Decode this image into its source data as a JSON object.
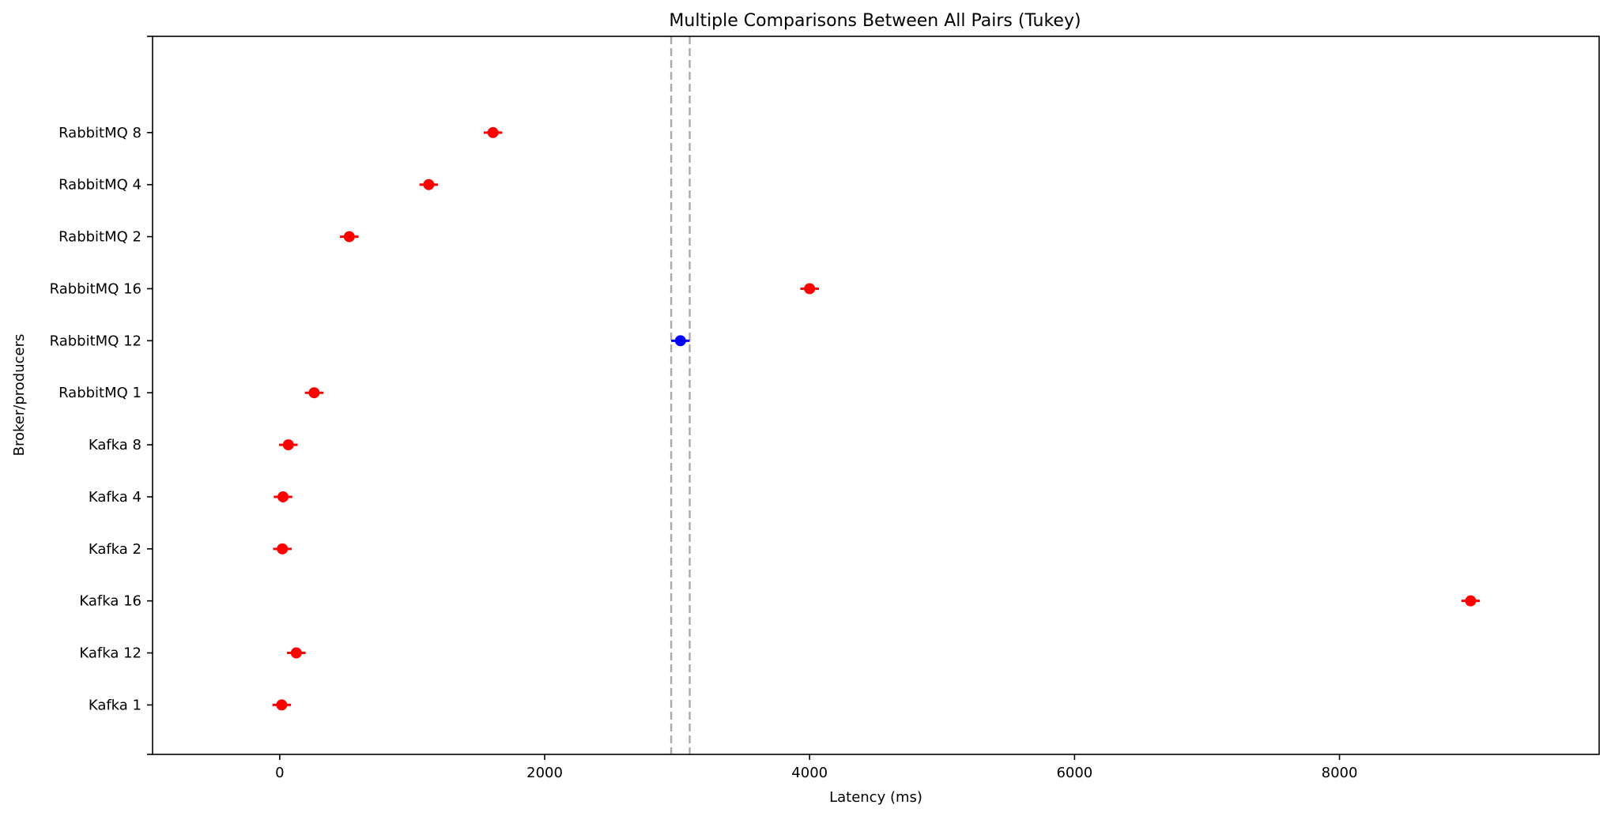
{
  "chart_data": {
    "type": "scatter",
    "title": "Multiple Comparisons Between All Pairs (Tukey)",
    "xlabel": "Latency (ms)",
    "ylabel": "Broker/producers",
    "xlim": [
      -960,
      9960
    ],
    "xticks": [
      0,
      2000,
      4000,
      6000,
      8000
    ],
    "xtick_labels": [
      "0",
      "2000",
      "4000",
      "6000",
      "8000"
    ],
    "categories": [
      "Kafka 1",
      "Kafka 12",
      "Kafka 16",
      "Kafka 2",
      "Kafka 4",
      "Kafka 8",
      "RabbitMQ 1",
      "RabbitMQ 12",
      "RabbitMQ 16",
      "RabbitMQ 2",
      "RabbitMQ 4",
      "RabbitMQ 8"
    ],
    "points": [
      {
        "label": "Kafka 1",
        "mean": 15,
        "half_width": 70,
        "color": "#ff0000"
      },
      {
        "label": "Kafka 12",
        "mean": 125,
        "half_width": 70,
        "color": "#ff0000"
      },
      {
        "label": "Kafka 16",
        "mean": 8990,
        "half_width": 70,
        "color": "#ff0000"
      },
      {
        "label": "Kafka 2",
        "mean": 20,
        "half_width": 70,
        "color": "#ff0000"
      },
      {
        "label": "Kafka 4",
        "mean": 25,
        "half_width": 70,
        "color": "#ff0000"
      },
      {
        "label": "Kafka 8",
        "mean": 65,
        "half_width": 70,
        "color": "#ff0000"
      },
      {
        "label": "RabbitMQ 1",
        "mean": 260,
        "half_width": 70,
        "color": "#ff0000"
      },
      {
        "label": "RabbitMQ 12",
        "mean": 3025,
        "half_width": 70,
        "color": "#0000ff"
      },
      {
        "label": "RabbitMQ 16",
        "mean": 4000,
        "half_width": 70,
        "color": "#ff0000"
      },
      {
        "label": "RabbitMQ 2",
        "mean": 525,
        "half_width": 70,
        "color": "#ff0000"
      },
      {
        "label": "RabbitMQ 4",
        "mean": 1125,
        "half_width": 70,
        "color": "#ff0000"
      },
      {
        "label": "RabbitMQ 8",
        "mean": 1610,
        "half_width": 70,
        "color": "#ff0000"
      }
    ],
    "reference_lines": [
      2955,
      3095
    ],
    "reference_color": "#aaaaaa",
    "grid": false,
    "legend": "none"
  }
}
